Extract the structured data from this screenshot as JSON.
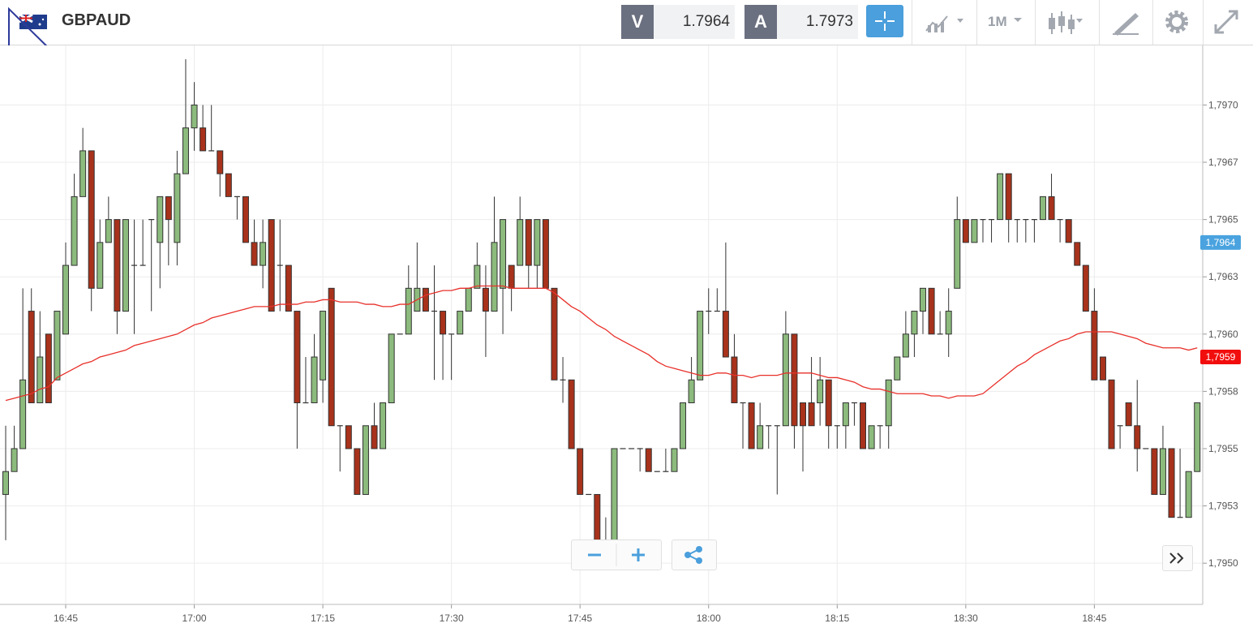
{
  "header": {
    "symbol": "GBPAUD",
    "bid_label": "V",
    "bid": 1.7964,
    "ask_label": "A",
    "ask": 1.7973,
    "timeframe": "1M"
  },
  "chart_data": {
    "type": "candlestick",
    "grid": true,
    "up_color": "#8cbb7d",
    "down_color": "#a8321b",
    "categories": [
      null,
      null,
      null,
      null,
      null,
      null,
      null,
      "16:45",
      null,
      null,
      null,
      null,
      null,
      null,
      null,
      null,
      null,
      null,
      null,
      null,
      null,
      null,
      "17:00",
      null,
      null,
      null,
      null,
      null,
      null,
      null,
      null,
      null,
      null,
      null,
      null,
      null,
      null,
      "17:15",
      null,
      null,
      null,
      null,
      null,
      null,
      null,
      null,
      null,
      null,
      null,
      null,
      null,
      null,
      "17:30",
      null,
      null,
      null,
      null,
      null,
      null,
      null,
      null,
      null,
      null,
      null,
      null,
      null,
      null,
      "17:45",
      null,
      null,
      null,
      null,
      null,
      null,
      null,
      null,
      null,
      null,
      null,
      null,
      null,
      null,
      "18:00",
      null,
      null,
      null,
      null,
      null,
      null,
      null,
      null,
      null,
      null,
      null,
      null,
      null,
      null,
      "18:15",
      null,
      null,
      null,
      null,
      null,
      null,
      null,
      null,
      null,
      null,
      null,
      null,
      null,
      null,
      "18:30",
      null,
      null,
      null,
      null,
      null,
      null,
      null,
      null,
      null,
      null,
      null,
      null,
      null,
      null,
      "18:45",
      null,
      null,
      null,
      null,
      null,
      null,
      null,
      null,
      null,
      null,
      null,
      null
    ],
    "open": [
      1.7953,
      1.7954,
      1.7955,
      1.7961,
      1.7957,
      1.796,
      1.7958,
      1.796,
      1.7963,
      1.7966,
      1.7968,
      1.7962,
      1.7964,
      1.7965,
      1.7961,
      1.7963,
      1.7963,
      1.7965,
      1.7964,
      1.7966,
      1.7964,
      1.7967,
      1.7969,
      1.7969,
      1.7968,
      1.7968,
      1.7967,
      1.7966,
      1.7966,
      1.7964,
      1.7963,
      1.7965,
      1.7963,
      1.7963,
      1.7961,
      1.7957,
      1.7957,
      1.7958,
      1.7962,
      1.7956,
      1.7956,
      1.7955,
      1.7953,
      1.7956,
      1.7955,
      1.7957,
      1.796,
      1.796,
      1.7961,
      1.7962,
      1.7961,
      1.7961,
      1.796,
      1.796,
      1.7961,
      1.7962,
      1.7962,
      1.7961,
      1.7962,
      1.7963,
      1.7963,
      1.7965,
      1.7963,
      1.7965,
      1.7962,
      1.7958,
      1.7958,
      1.7955,
      1.7953,
      1.7953,
      1.7951,
      1.7951,
      1.7955,
      1.7955,
      1.7955,
      1.7955,
      1.7954,
      1.7954,
      1.7954,
      1.7955,
      1.7957,
      1.7958,
      1.7961,
      1.7961,
      1.7961,
      1.7959,
      1.7957,
      1.7957,
      1.7955,
      1.7956,
      1.7956,
      1.7956,
      1.796,
      1.7957,
      1.7957,
      1.7957,
      1.7958,
      1.7956,
      1.7956,
      1.7957,
      1.7957,
      1.7955,
      1.7956,
      1.7956,
      1.7958,
      1.7959,
      1.796,
      1.7961,
      1.7962,
      1.796,
      1.796,
      1.7962,
      1.7965,
      1.7964,
      1.7965,
      1.7965,
      1.7965,
      1.7967,
      1.7965,
      1.7965,
      1.7965,
      1.7965,
      1.7966,
      1.7965,
      1.7965,
      1.7964,
      1.7963,
      1.7961,
      1.7959,
      1.7958,
      1.7956,
      1.7957,
      1.7956,
      1.7955,
      1.7955,
      1.7953,
      1.7955,
      1.7952,
      1.7952,
      1.7954
    ],
    "high": [
      1.7956,
      1.7956,
      1.7962,
      1.7962,
      1.7961,
      1.796,
      1.7961,
      1.7964,
      1.7967,
      1.7969,
      1.7968,
      1.7965,
      1.7966,
      1.7965,
      1.7965,
      1.7965,
      1.7965,
      1.7965,
      1.7966,
      1.7966,
      1.7968,
      1.7972,
      1.7971,
      1.797,
      1.797,
      1.7968,
      1.7967,
      1.7966,
      1.7966,
      1.7965,
      1.7965,
      1.7965,
      1.7965,
      1.7963,
      1.7961,
      1.7959,
      1.796,
      1.7961,
      1.7962,
      1.7956,
      1.7956,
      1.7955,
      1.7956,
      1.7957,
      1.7957,
      1.796,
      1.796,
      1.7963,
      1.7964,
      1.7962,
      1.7963,
      1.7961,
      1.796,
      1.7961,
      1.7962,
      1.7964,
      1.7963,
      1.7966,
      1.7965,
      1.7963,
      1.7966,
      1.7965,
      1.7965,
      1.7965,
      1.7962,
      1.7959,
      1.7958,
      1.7955,
      1.7953,
      1.7953,
      1.7952,
      1.7955,
      1.7955,
      1.7955,
      1.7955,
      1.7955,
      1.7954,
      1.7955,
      1.7955,
      1.7957,
      1.7959,
      1.7961,
      1.7962,
      1.7962,
      1.7964,
      1.796,
      1.7957,
      1.7957,
      1.7957,
      1.7956,
      1.7956,
      1.7961,
      1.796,
      1.7957,
      1.7959,
      1.7959,
      1.7958,
      1.7956,
      1.7957,
      1.7957,
      1.7957,
      1.7956,
      1.7956,
      1.7958,
      1.7959,
      1.7961,
      1.7961,
      1.7962,
      1.7962,
      1.7961,
      1.7962,
      1.7966,
      1.7965,
      1.7965,
      1.7965,
      1.7965,
      1.7967,
      1.7967,
      1.7965,
      1.7965,
      1.7965,
      1.7966,
      1.7967,
      1.7965,
      1.7965,
      1.7964,
      1.7963,
      1.7962,
      1.7959,
      1.7958,
      1.7956,
      1.7957,
      1.7958,
      1.7955,
      1.7955,
      1.7956,
      1.7955,
      1.7955,
      1.7954,
      1.7957
    ],
    "low": [
      1.7951,
      1.7954,
      1.7955,
      1.7957,
      1.7957,
      1.7957,
      1.7958,
      1.796,
      1.7963,
      1.7966,
      1.7961,
      1.7962,
      1.7964,
      1.796,
      1.7961,
      1.796,
      1.7963,
      1.7961,
      1.7962,
      1.7963,
      1.7963,
      1.7967,
      1.7968,
      1.7968,
      1.7968,
      1.7966,
      1.7966,
      1.7965,
      1.7964,
      1.7963,
      1.7962,
      1.7961,
      1.7961,
      1.7961,
      1.7955,
      1.7957,
      1.7957,
      1.7957,
      1.7956,
      1.7954,
      1.7955,
      1.7953,
      1.7953,
      1.7955,
      1.7955,
      1.7957,
      1.796,
      1.796,
      1.7961,
      1.7961,
      1.7958,
      1.7958,
      1.7958,
      1.796,
      1.7961,
      1.7962,
      1.7959,
      1.7961,
      1.796,
      1.7961,
      1.7963,
      1.7962,
      1.7962,
      1.7962,
      1.7958,
      1.7957,
      1.7955,
      1.7953,
      1.7953,
      1.7951,
      1.795,
      1.7951,
      1.7955,
      1.7955,
      1.7954,
      1.7954,
      1.7954,
      1.7954,
      1.7954,
      1.7955,
      1.7957,
      1.7958,
      1.796,
      1.7961,
      1.7959,
      1.7957,
      1.7955,
      1.7955,
      1.7955,
      1.7955,
      1.7953,
      1.7956,
      1.7955,
      1.7954,
      1.7956,
      1.7956,
      1.7955,
      1.7955,
      1.7955,
      1.7956,
      1.7955,
      1.7955,
      1.7955,
      1.7955,
      1.7958,
      1.7959,
      1.7959,
      1.796,
      1.796,
      1.796,
      1.7959,
      1.7962,
      1.7964,
      1.7964,
      1.7964,
      1.7964,
      1.7965,
      1.7964,
      1.7964,
      1.7964,
      1.7964,
      1.7965,
      1.7965,
      1.7964,
      1.7964,
      1.7963,
      1.7961,
      1.7958,
      1.7958,
      1.7955,
      1.7955,
      1.7956,
      1.7954,
      1.7955,
      1.7953,
      1.7953,
      1.7952,
      1.7952,
      1.7952,
      1.7954
    ],
    "close": [
      1.7954,
      1.7955,
      1.7958,
      1.7957,
      1.7959,
      1.7957,
      1.7961,
      1.7963,
      1.7966,
      1.7968,
      1.7962,
      1.7964,
      1.7965,
      1.7961,
      1.7965,
      1.7963,
      1.7963,
      1.7965,
      1.7966,
      1.7965,
      1.7967,
      1.7969,
      1.797,
      1.7968,
      1.7968,
      1.7967,
      1.7966,
      1.7966,
      1.7964,
      1.7963,
      1.7964,
      1.7961,
      1.7963,
      1.7961,
      1.7957,
      1.7957,
      1.7959,
      1.7961,
      1.7956,
      1.7956,
      1.7955,
      1.7953,
      1.7956,
      1.7955,
      1.7957,
      1.796,
      1.796,
      1.7962,
      1.7962,
      1.7961,
      1.7961,
      1.796,
      1.796,
      1.7961,
      1.7962,
      1.7963,
      1.7961,
      1.7964,
      1.7965,
      1.7962,
      1.7965,
      1.7963,
      1.7965,
      1.7962,
      1.7958,
      1.7958,
      1.7955,
      1.7953,
      1.7953,
      1.7951,
      1.7951,
      1.7955,
      1.7955,
      1.7955,
      1.7955,
      1.7954,
      1.7954,
      1.7954,
      1.7955,
      1.7957,
      1.7958,
      1.7961,
      1.7961,
      1.7961,
      1.7959,
      1.7957,
      1.7957,
      1.7955,
      1.7956,
      1.7956,
      1.7956,
      1.796,
      1.7956,
      1.7956,
      1.7956,
      1.7958,
      1.7956,
      1.7956,
      1.7957,
      1.7957,
      1.7955,
      1.7956,
      1.7956,
      1.7958,
      1.7959,
      1.796,
      1.7961,
      1.7962,
      1.796,
      1.796,
      1.7961,
      1.7965,
      1.7964,
      1.7965,
      1.7965,
      1.7965,
      1.7967,
      1.7965,
      1.7965,
      1.7965,
      1.7965,
      1.7966,
      1.7965,
      1.7965,
      1.7964,
      1.7963,
      1.7961,
      1.7958,
      1.7958,
      1.7955,
      1.7956,
      1.7956,
      1.7955,
      1.7955,
      1.7953,
      1.7955,
      1.7952,
      1.7952,
      1.7954,
      1.7957
    ],
    "ma": {
      "color": "#e8302a",
      "values": [
        1.79571,
        1.79572,
        1.79573,
        1.79574,
        1.79576,
        1.79577,
        1.79581,
        1.79583,
        1.79585,
        1.79587,
        1.79588,
        1.7959,
        1.79591,
        1.79592,
        1.79593,
        1.79595,
        1.79596,
        1.79597,
        1.79598,
        1.79599,
        1.796,
        1.79602,
        1.79604,
        1.79605,
        1.79607,
        1.79608,
        1.79609,
        1.7961,
        1.79611,
        1.79612,
        1.79612,
        1.79612,
        1.79613,
        1.79613,
        1.79613,
        1.79614,
        1.79614,
        1.79615,
        1.79615,
        1.79614,
        1.79614,
        1.79614,
        1.79613,
        1.79613,
        1.79612,
        1.79612,
        1.79613,
        1.79613,
        1.79615,
        1.79617,
        1.79618,
        1.79619,
        1.79619,
        1.7962,
        1.7962,
        1.79621,
        1.79621,
        1.79621,
        1.79621,
        1.7962,
        1.7962,
        1.7962,
        1.7962,
        1.7962,
        1.79618,
        1.79615,
        1.79612,
        1.7961,
        1.79607,
        1.79604,
        1.79602,
        1.79599,
        1.79597,
        1.79595,
        1.79593,
        1.79591,
        1.79588,
        1.79586,
        1.79585,
        1.79584,
        1.79583,
        1.79582,
        1.79582,
        1.79583,
        1.79583,
        1.79582,
        1.79582,
        1.79581,
        1.79582,
        1.79582,
        1.79582,
        1.79583,
        1.79583,
        1.79583,
        1.79583,
        1.79582,
        1.79581,
        1.79581,
        1.7958,
        1.79579,
        1.79577,
        1.79576,
        1.79576,
        1.79575,
        1.79574,
        1.79574,
        1.79574,
        1.79574,
        1.79573,
        1.79573,
        1.79572,
        1.79573,
        1.79573,
        1.79573,
        1.79574,
        1.79577,
        1.7958,
        1.79583,
        1.79586,
        1.79588,
        1.79591,
        1.79593,
        1.79595,
        1.79597,
        1.79598,
        1.796,
        1.79601,
        1.79601,
        1.79601,
        1.79601,
        1.796,
        1.79599,
        1.79598,
        1.79596,
        1.79595,
        1.79594,
        1.79594,
        1.79594,
        1.79593,
        1.79594
      ]
    },
    "ylim": [
      1.79482,
      1.79726
    ],
    "yticks": [
      {
        "value": 1.795,
        "label": "1,7950"
      },
      {
        "value": 1.79525,
        "label": "1,7953"
      },
      {
        "value": 1.7955,
        "label": "1,7955"
      },
      {
        "value": 1.79575,
        "label": "1,7958"
      },
      {
        "value": 1.796,
        "label": "1,7960"
      },
      {
        "value": 1.79625,
        "label": "1,7963"
      },
      {
        "value": 1.7965,
        "label": "1,7965"
      },
      {
        "value": 1.79675,
        "label": "1,7967"
      },
      {
        "value": 1.797,
        "label": "1,7970"
      }
    ],
    "price_tags": [
      {
        "value": 1.7964,
        "label": "1,7964",
        "color": "#4aa3df"
      },
      {
        "value": 1.7959,
        "label": "1,7959",
        "color": "#f20d0d"
      }
    ]
  }
}
